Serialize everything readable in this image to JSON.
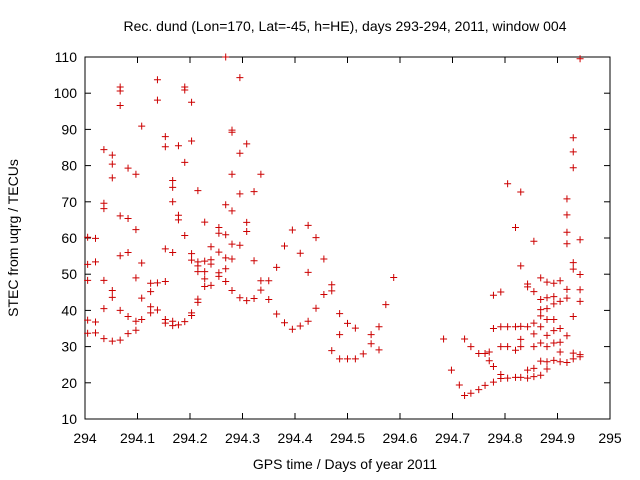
{
  "chart_data": {
    "type": "scatter",
    "title": "Rec. dund (Lon=170, Lat=-45, h=HE), days 293-294, 2011, window 004",
    "xlabel": "GPS time / Days of year 2011",
    "ylabel": "STEC from uqrg / TECUs",
    "xlim": [
      294,
      295
    ],
    "ylim": [
      10,
      110
    ],
    "xticks": [
      294,
      294.1,
      294.2,
      294.3,
      294.4,
      294.5,
      294.6,
      294.7,
      294.8,
      294.9,
      295
    ],
    "xtick_labels": [
      "294",
      "294.1",
      "294.2",
      "294.3",
      "294.4",
      "294.5",
      "294.6",
      "294.7",
      "294.8",
      "294.9",
      "295"
    ],
    "yticks": [
      10,
      20,
      30,
      40,
      50,
      60,
      70,
      80,
      90,
      100,
      110
    ],
    "ytick_labels": [
      "10",
      "20",
      "30",
      "40",
      "50",
      "60",
      "70",
      "80",
      "90",
      "100",
      "110"
    ],
    "grid": false,
    "marker": "plus",
    "color": "#cc0000",
    "points": [
      [
        294.005,
        60.2
      ],
      [
        294.005,
        52.7
      ],
      [
        294.005,
        48.3
      ],
      [
        294.005,
        37.3
      ],
      [
        294.005,
        33.7
      ],
      [
        294.02,
        59.9
      ],
      [
        294.02,
        53.4
      ],
      [
        294.02,
        36.8
      ],
      [
        294.02,
        33.8
      ],
      [
        294.036,
        84.4
      ],
      [
        294.036,
        69.6
      ],
      [
        294.036,
        68.1
      ],
      [
        294.036,
        48.3
      ],
      [
        294.036,
        40.5
      ],
      [
        294.036,
        32.2
      ],
      [
        294.052,
        82.9
      ],
      [
        294.052,
        80.4
      ],
      [
        294.052,
        76.6
      ],
      [
        294.052,
        45.5
      ],
      [
        294.052,
        43.6
      ],
      [
        294.052,
        31.5
      ],
      [
        294.067,
        101.7
      ],
      [
        294.067,
        100.6
      ],
      [
        294.067,
        96.6
      ],
      [
        294.067,
        66.1
      ],
      [
        294.067,
        55.1
      ],
      [
        294.067,
        40.0
      ],
      [
        294.067,
        31.8
      ],
      [
        294.082,
        79.3
      ],
      [
        294.082,
        65.4
      ],
      [
        294.082,
        56.0
      ],
      [
        294.082,
        38.3
      ],
      [
        294.082,
        33.6
      ],
      [
        294.097,
        77.6
      ],
      [
        294.097,
        62.3
      ],
      [
        294.097,
        49.0
      ],
      [
        294.097,
        37.0
      ],
      [
        294.097,
        34.5
      ],
      [
        294.108,
        90.9
      ],
      [
        294.108,
        53.1
      ],
      [
        294.108,
        43.4
      ],
      [
        294.108,
        37.5
      ],
      [
        294.125,
        47.5
      ],
      [
        294.125,
        45.2
      ],
      [
        294.125,
        41.0
      ],
      [
        294.125,
        39.3
      ],
      [
        294.138,
        103.7
      ],
      [
        294.138,
        98.1
      ],
      [
        294.138,
        47.6
      ],
      [
        294.138,
        40.1
      ],
      [
        294.153,
        88.0
      ],
      [
        294.153,
        85.2
      ],
      [
        294.153,
        57.0
      ],
      [
        294.153,
        48.0
      ],
      [
        294.153,
        37.5
      ],
      [
        294.153,
        36.5
      ],
      [
        294.167,
        75.9
      ],
      [
        294.167,
        74.0
      ],
      [
        294.167,
        70.0
      ],
      [
        294.167,
        56.0
      ],
      [
        294.167,
        37.0
      ],
      [
        294.167,
        35.8
      ],
      [
        294.178,
        85.5
      ],
      [
        294.178,
        66.3
      ],
      [
        294.178,
        65.0
      ],
      [
        294.178,
        36.0
      ],
      [
        294.19,
        101.7
      ],
      [
        294.19,
        100.9
      ],
      [
        294.19,
        80.9
      ],
      [
        294.19,
        60.7
      ],
      [
        294.19,
        36.9
      ],
      [
        294.203,
        97.5
      ],
      [
        294.203,
        86.8
      ],
      [
        294.203,
        55.7
      ],
      [
        294.203,
        53.9
      ],
      [
        294.203,
        39.3
      ],
      [
        294.203,
        38.6
      ],
      [
        294.215,
        73.1
      ],
      [
        294.215,
        53.4
      ],
      [
        294.215,
        52.3
      ],
      [
        294.215,
        50.7
      ],
      [
        294.215,
        43.1
      ],
      [
        294.215,
        42.2
      ],
      [
        294.228,
        64.4
      ],
      [
        294.228,
        53.6
      ],
      [
        294.228,
        50.7
      ],
      [
        294.228,
        48.7
      ],
      [
        294.228,
        46.6
      ],
      [
        294.24,
        57.6
      ],
      [
        294.24,
        54.0
      ],
      [
        294.24,
        52.8
      ],
      [
        294.24,
        46.9
      ],
      [
        294.255,
        62.9
      ],
      [
        294.255,
        61.3
      ],
      [
        294.255,
        56.1
      ],
      [
        294.255,
        50.4
      ],
      [
        294.255,
        49.4
      ],
      [
        294.268,
        110.0
      ],
      [
        294.268,
        69.2
      ],
      [
        294.268,
        60.9
      ],
      [
        294.268,
        54.5
      ],
      [
        294.268,
        51.5
      ],
      [
        294.268,
        48.0
      ],
      [
        294.28,
        89.8
      ],
      [
        294.28,
        89.2
      ],
      [
        294.28,
        77.6
      ],
      [
        294.28,
        67.5
      ],
      [
        294.28,
        58.3
      ],
      [
        294.28,
        54.2
      ],
      [
        294.28,
        45.5
      ],
      [
        294.295,
        104.3
      ],
      [
        294.295,
        83.4
      ],
      [
        294.295,
        72.2
      ],
      [
        294.295,
        58.0
      ],
      [
        294.295,
        43.5
      ],
      [
        294.308,
        86.0
      ],
      [
        294.308,
        64.3
      ],
      [
        294.308,
        61.8
      ],
      [
        294.308,
        42.7
      ],
      [
        294.322,
        72.8
      ],
      [
        294.322,
        53.7
      ],
      [
        294.322,
        43.3
      ],
      [
        294.335,
        77.6
      ],
      [
        294.335,
        48.2
      ],
      [
        294.335,
        45.6
      ],
      [
        294.35,
        48.2
      ],
      [
        294.35,
        43.0
      ],
      [
        294.365,
        51.9
      ],
      [
        294.365,
        39.0
      ],
      [
        294.38,
        57.8
      ],
      [
        294.38,
        36.6
      ],
      [
        294.395,
        62.2
      ],
      [
        294.395,
        34.8
      ],
      [
        294.41,
        55.8
      ],
      [
        294.41,
        35.7
      ],
      [
        294.425,
        63.5
      ],
      [
        294.425,
        50.5
      ],
      [
        294.425,
        37.0
      ],
      [
        294.44,
        60.1
      ],
      [
        294.44,
        40.6
      ],
      [
        294.455,
        54.2
      ],
      [
        294.455,
        44.4
      ],
      [
        294.47,
        47.1
      ],
      [
        294.47,
        45.4
      ],
      [
        294.47,
        28.9
      ],
      [
        294.485,
        39.1
      ],
      [
        294.485,
        33.3
      ],
      [
        294.485,
        26.6
      ],
      [
        294.5,
        36.4
      ],
      [
        294.5,
        26.6
      ],
      [
        294.515,
        35.1
      ],
      [
        294.515,
        26.6
      ],
      [
        294.53,
        28.0
      ],
      [
        294.545,
        33.3
      ],
      [
        294.545,
        30.8
      ],
      [
        294.56,
        35.5
      ],
      [
        294.56,
        29.1
      ],
      [
        294.573,
        41.6
      ],
      [
        294.588,
        49.1
      ],
      [
        294.683,
        32.1
      ],
      [
        294.698,
        23.5
      ],
      [
        294.713,
        19.4
      ],
      [
        294.723,
        32.1
      ],
      [
        294.723,
        16.5
      ],
      [
        294.735,
        17.1
      ],
      [
        294.735,
        30.0
      ],
      [
        294.75,
        28.1
      ],
      [
        294.75,
        18.1
      ],
      [
        294.762,
        28.1
      ],
      [
        294.762,
        19.3
      ],
      [
        294.77,
        28.5
      ],
      [
        294.77,
        26.1
      ],
      [
        294.778,
        44.2
      ],
      [
        294.778,
        35.0
      ],
      [
        294.778,
        24.5
      ],
      [
        294.778,
        20.2
      ],
      [
        294.792,
        45.1
      ],
      [
        294.792,
        35.5
      ],
      [
        294.792,
        30.0
      ],
      [
        294.792,
        22.3
      ],
      [
        294.792,
        21.2
      ],
      [
        294.805,
        75.0
      ],
      [
        294.805,
        35.5
      ],
      [
        294.805,
        30.0
      ],
      [
        294.805,
        21.3
      ],
      [
        294.82,
        62.9
      ],
      [
        294.82,
        35.5
      ],
      [
        294.82,
        29.0
      ],
      [
        294.82,
        21.5
      ],
      [
        294.83,
        72.7
      ],
      [
        294.83,
        52.3
      ],
      [
        294.83,
        35.6
      ],
      [
        294.83,
        32.0
      ],
      [
        294.83,
        30.0
      ],
      [
        294.83,
        21.5
      ],
      [
        294.843,
        47.3
      ],
      [
        294.843,
        46.5
      ],
      [
        294.843,
        35.5
      ],
      [
        294.843,
        23.5
      ],
      [
        294.843,
        21.3
      ],
      [
        294.855,
        59.1
      ],
      [
        294.855,
        45.2
      ],
      [
        294.855,
        36.5
      ],
      [
        294.855,
        33.5
      ],
      [
        294.855,
        30.0
      ],
      [
        294.855,
        24.0
      ],
      [
        294.855,
        21.7
      ],
      [
        294.868,
        49.0
      ],
      [
        294.868,
        43.0
      ],
      [
        294.868,
        40.2
      ],
      [
        294.868,
        38.5
      ],
      [
        294.868,
        35.5
      ],
      [
        294.868,
        31.0
      ],
      [
        294.868,
        26.0
      ],
      [
        294.868,
        22.1
      ],
      [
        294.88,
        47.8
      ],
      [
        294.88,
        43.5
      ],
      [
        294.88,
        40.5
      ],
      [
        294.88,
        37.5
      ],
      [
        294.88,
        33.1
      ],
      [
        294.88,
        30.0
      ],
      [
        294.88,
        25.8
      ],
      [
        294.88,
        23.8
      ],
      [
        294.893,
        47.5
      ],
      [
        294.893,
        43.8
      ],
      [
        294.893,
        41.8
      ],
      [
        294.893,
        37.5
      ],
      [
        294.893,
        34.4
      ],
      [
        294.893,
        31.0
      ],
      [
        294.893,
        26.2
      ],
      [
        294.905,
        48.2
      ],
      [
        294.905,
        42.5
      ],
      [
        294.905,
        35.0
      ],
      [
        294.905,
        31.2
      ],
      [
        294.905,
        28.5
      ],
      [
        294.905,
        25.8
      ],
      [
        294.918,
        70.8
      ],
      [
        294.918,
        66.4
      ],
      [
        294.918,
        61.6
      ],
      [
        294.918,
        58.4
      ],
      [
        294.918,
        45.8
      ],
      [
        294.918,
        43.4
      ],
      [
        294.918,
        33.0
      ],
      [
        294.918,
        25.6
      ],
      [
        294.93,
        87.7
      ],
      [
        294.93,
        83.8
      ],
      [
        294.93,
        79.4
      ],
      [
        294.93,
        53.2
      ],
      [
        294.93,
        51.4
      ],
      [
        294.93,
        38.3
      ],
      [
        294.93,
        28.2
      ],
      [
        294.93,
        26.6
      ],
      [
        294.943,
        109.5
      ],
      [
        294.943,
        59.5
      ],
      [
        294.943,
        49.9
      ],
      [
        294.943,
        45.7
      ],
      [
        294.943,
        42.5
      ],
      [
        294.943,
        27.8
      ],
      [
        294.943,
        27.2
      ]
    ]
  }
}
